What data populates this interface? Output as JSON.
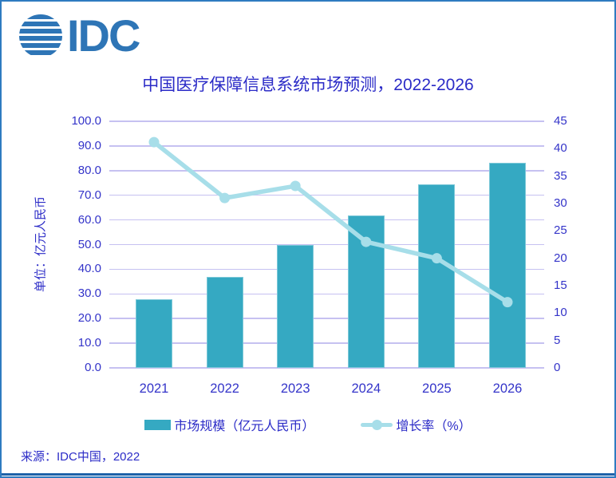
{
  "logo": {
    "text": "IDC"
  },
  "chart_data": {
    "type": "bar",
    "combo": "bar+line",
    "title": "中国医疗保障信息系统市场预测，2022-2026",
    "categories": [
      "2021",
      "2022",
      "2023",
      "2024",
      "2025",
      "2026"
    ],
    "series": [
      {
        "name": "市场规模（亿元人民币）",
        "type": "bar",
        "axis": "left",
        "values": [
          27.8,
          37.0,
          49.8,
          61.7,
          74.3,
          83.3
        ]
      },
      {
        "name": "增长率（%）",
        "type": "line",
        "axis": "right",
        "values": [
          41.2,
          31.0,
          33.2,
          23.0,
          20.0,
          12.0
        ]
      }
    ],
    "left_axis": {
      "title": "单位：亿元人民币",
      "min": 0,
      "max": 100,
      "step": 10,
      "decimals": 1
    },
    "right_axis": {
      "min": 0,
      "max": 45,
      "step": 5,
      "decimals": 0
    },
    "grid": true,
    "legend_position": "bottom",
    "legend": {
      "bar_label": "市场规模（亿元人民币）",
      "line_label": "增长率（%）"
    }
  },
  "footer": {
    "source": "来源：IDC中国，2022"
  },
  "colors": {
    "bar": "#35a9c2",
    "line": "#a7dee9",
    "grid": "#c6c1f1",
    "text_blue": "#2b2bc7",
    "logo_blue": "#2e75b6",
    "border_blue": "#2e7bc0",
    "bottom_rule": "#1d61a8"
  }
}
